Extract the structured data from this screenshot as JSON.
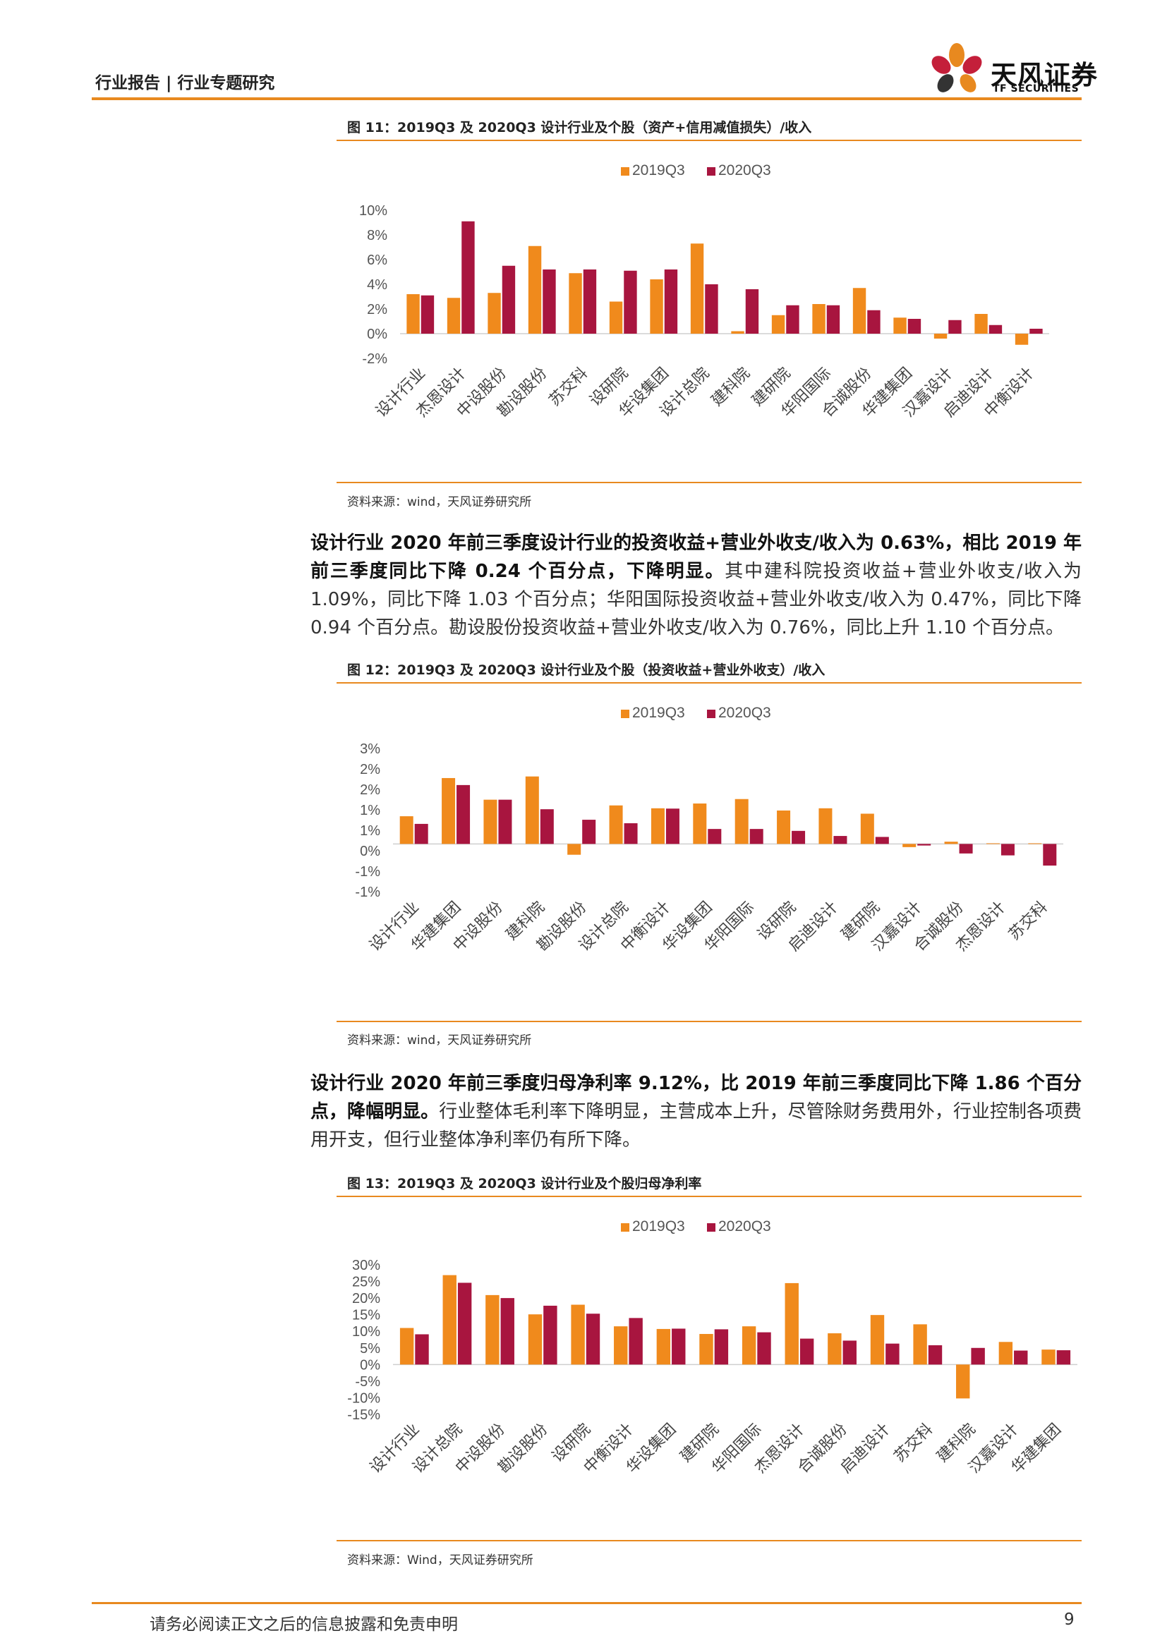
{
  "header": {
    "section": "行业报告 | 行业专题研究",
    "logo_cn": "天风证券",
    "logo_en": "TF SECURITIES"
  },
  "colors": {
    "accent": "#e8891f",
    "series_2019": "#f08a1c",
    "series_2020": "#a8153f"
  },
  "figures": [
    {
      "title": "图 11：2019Q3 及 2020Q3 设计行业及个股（资产+信用减值损失）/收入",
      "source": "资料来源：wind，天风证券研究所"
    },
    {
      "title": "图 12：2019Q3 及 2020Q3 设计行业及个股（投资收益+营业外收支）/收入",
      "source": "资料来源：wind，天风证券研究所"
    },
    {
      "title": "图 13：2019Q3 及 2020Q3 设计行业及个股归母净利率",
      "source": "资料来源：Wind，天风证券研究所"
    }
  ],
  "paragraphs": [
    {
      "strong": "设计行业 2020 年前三季度设计行业的投资收益+营业外收支/收入为 0.63%，相比 2019 年前三季度同比下降 0.24 个百分点，下降明显。",
      "rest": "其中建科院投资收益+营业外收支/收入为 1.09%，同比下降 1.03 个百分点；华阳国际投资收益+营业外收支/收入为 0.47%，同比下降 0.94 个百分点。勘设股份投资收益+营业外收支/收入为 0.76%，同比上升 1.10 个百分点。"
    },
    {
      "strong": "设计行业 2020 年前三季度归母净利率 9.12%，比 2019 年前三季度同比下降 1.86 个百分点，降幅明显。",
      "rest": "行业整体毛利率下降明显，主营成本上升，尽管除财务费用外，行业控制各项费用开支，但行业整体净利率仍有所下降。"
    }
  ],
  "chart_data": [
    {
      "type": "bar",
      "categories": [
        "设计行业",
        "杰恩设计",
        "中设股份",
        "勘设股份",
        "苏交科",
        "设研院",
        "华设集团",
        "设计总院",
        "建科院",
        "建研院",
        "华阳国际",
        "合诚股份",
        "华建集团",
        "汉嘉设计",
        "启迪设计",
        "中衡设计"
      ],
      "series": [
        {
          "name": "2019Q3",
          "values": [
            3.2,
            2.9,
            3.3,
            7.1,
            4.9,
            2.6,
            4.4,
            7.3,
            0.2,
            1.5,
            2.4,
            3.7,
            1.3,
            -0.4,
            1.6,
            -0.9
          ]
        },
        {
          "name": "2020Q3",
          "values": [
            3.1,
            9.1,
            5.5,
            5.2,
            5.2,
            5.1,
            5.2,
            4.0,
            3.6,
            2.3,
            2.3,
            1.9,
            1.2,
            1.1,
            0.7,
            0.4
          ]
        }
      ],
      "y_ticks": [
        "-2%",
        "0%",
        "2%",
        "4%",
        "6%",
        "8%",
        "10%"
      ],
      "ylim": [
        -2,
        10
      ]
    },
    {
      "type": "bar",
      "categories": [
        "设计行业",
        "华建集团",
        "中设股份",
        "建科院",
        "勘设股份",
        "设计总院",
        "中衡设计",
        "华设集团",
        "华阳国际",
        "设研院",
        "启迪设计",
        "建研院",
        "汉嘉设计",
        "合诚股份",
        "杰恩设计",
        "苏交科"
      ],
      "series": [
        {
          "name": "2019Q3",
          "values": [
            0.87,
            2.07,
            1.39,
            2.12,
            -0.34,
            1.21,
            1.12,
            1.27,
            1.41,
            1.05,
            1.12,
            0.95,
            -0.1,
            0.07,
            0.02,
            0.02
          ]
        },
        {
          "name": "2020Q3",
          "values": [
            0.63,
            1.85,
            1.39,
            1.09,
            0.76,
            0.65,
            1.11,
            0.47,
            0.47,
            0.41,
            0.25,
            0.22,
            -0.05,
            -0.3,
            -0.36,
            -0.68
          ]
        }
      ],
      "y_ticks": [
        "-1%",
        "-1%",
        "0%",
        "1%",
        "1%",
        "2%",
        "2%",
        "3%"
      ],
      "ylim": [
        -1.5,
        3.0
      ]
    },
    {
      "type": "bar",
      "categories": [
        "设计行业",
        "设计总院",
        "中设股份",
        "勘设股份",
        "设研院",
        "中衡设计",
        "华设集团",
        "建研院",
        "华阳国际",
        "杰恩设计",
        "合诚股份",
        "启迪设计",
        "苏交科",
        "建科院",
        "汉嘉设计",
        "华建集团"
      ],
      "series": [
        {
          "name": "2019Q3",
          "values": [
            11.0,
            26.9,
            20.9,
            15.1,
            18.0,
            11.5,
            10.7,
            9.2,
            11.5,
            24.5,
            9.4,
            14.9,
            12.1,
            -10.2,
            6.8,
            4.5
          ]
        },
        {
          "name": "2020Q3",
          "values": [
            9.1,
            24.6,
            20.0,
            17.7,
            15.3,
            14.0,
            10.8,
            10.6,
            9.7,
            7.8,
            7.2,
            6.3,
            5.8,
            5.0,
            4.2,
            4.3
          ]
        }
      ],
      "y_ticks": [
        "-15%",
        "-10%",
        "-5%",
        "0%",
        "5%",
        "10%",
        "15%",
        "20%",
        "25%",
        "30%"
      ],
      "ylim": [
        -15,
        30
      ]
    }
  ],
  "footer": {
    "disclaimer": "请务必阅读正文之后的信息披露和免责申明",
    "page": "9"
  }
}
